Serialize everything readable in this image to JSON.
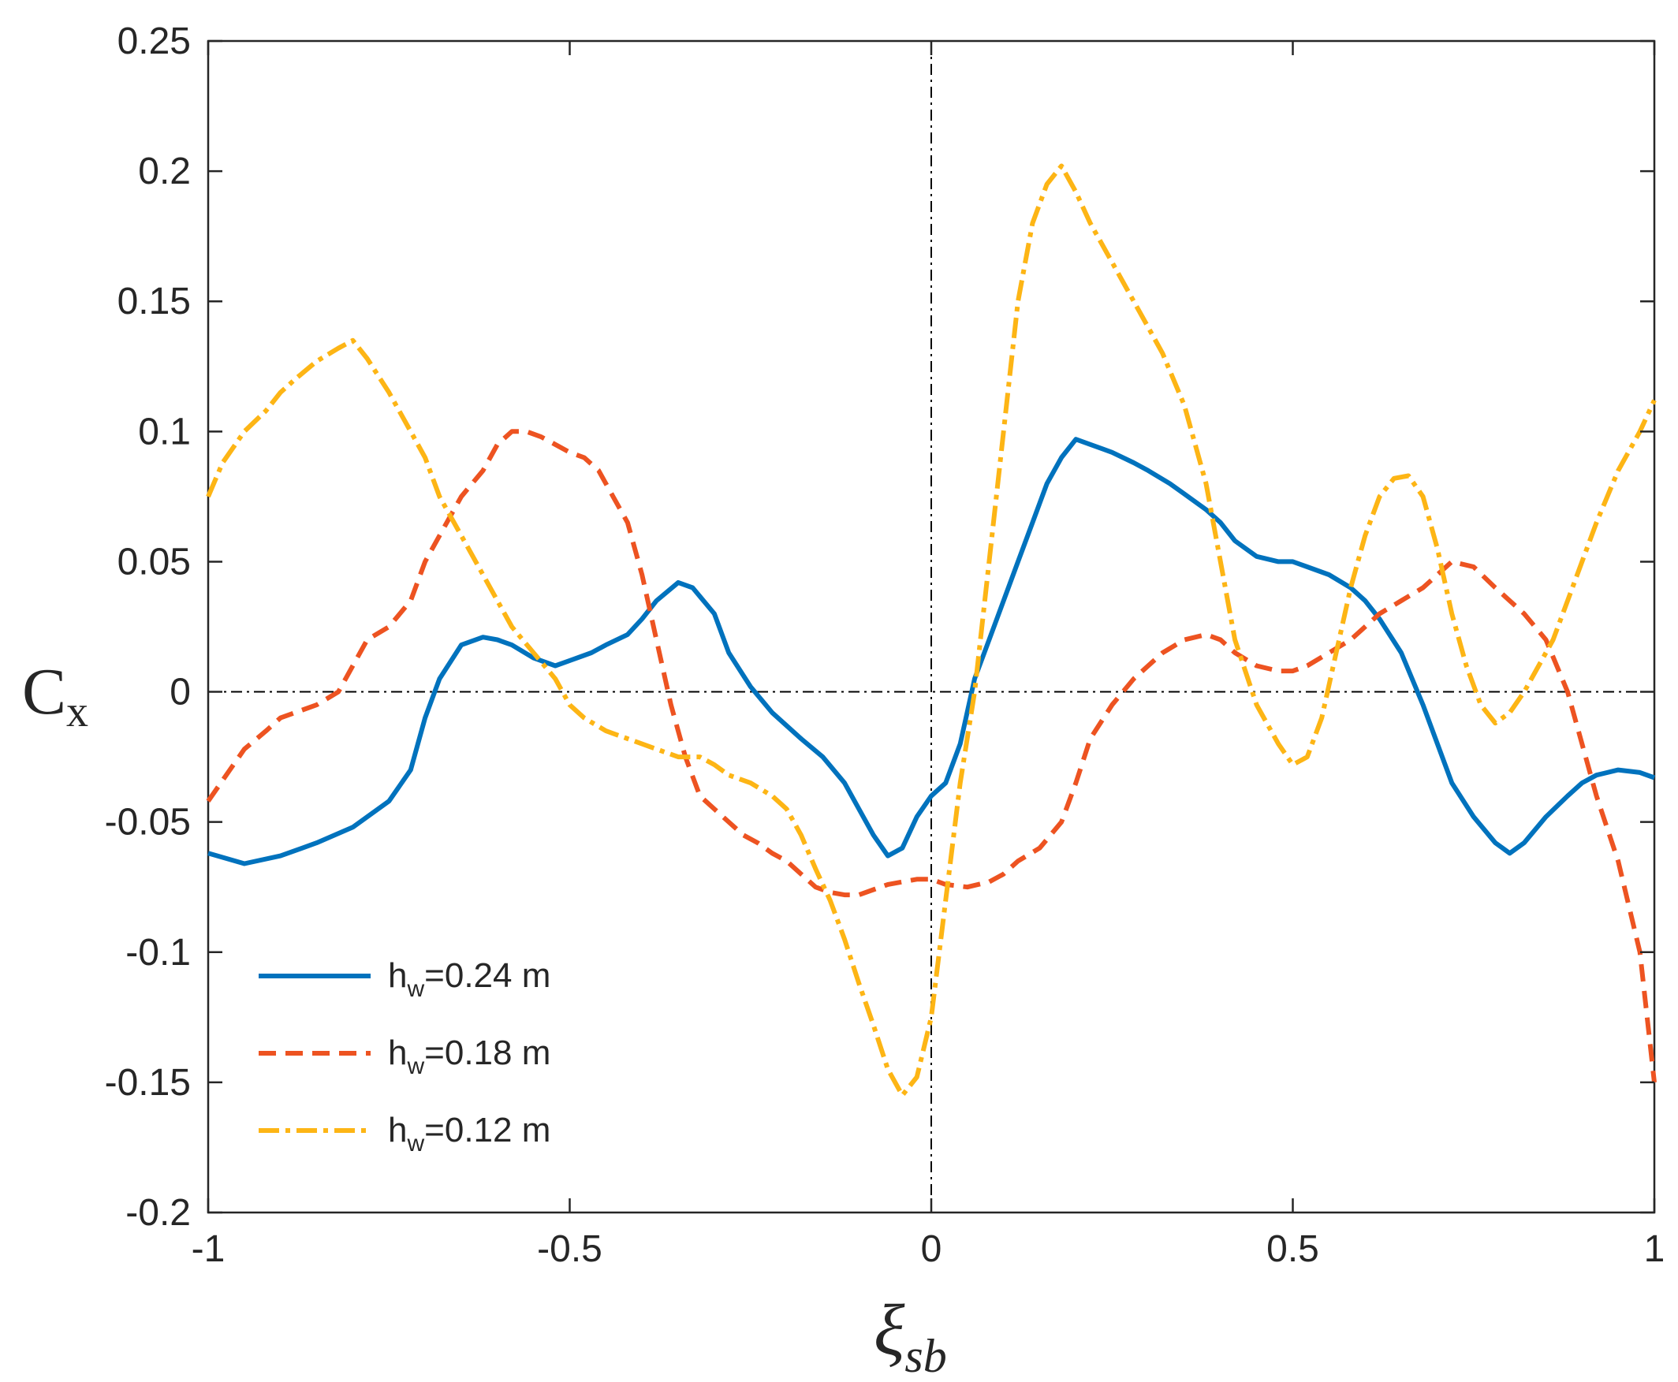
{
  "chart_data": {
    "type": "line",
    "title": "",
    "xlabel": "ξ",
    "xlabel_sub": "sb",
    "ylabel": "C",
    "ylabel_sub": "x",
    "xlim": [
      -1,
      1
    ],
    "ylim": [
      -0.2,
      0.25
    ],
    "xticks": [
      -1,
      -0.5,
      0,
      0.5,
      1
    ],
    "xtick_labels": [
      "-1",
      "-0.5",
      "0",
      "0.5",
      "1"
    ],
    "yticks": [
      -0.2,
      -0.15,
      -0.1,
      -0.05,
      0,
      0.05,
      0.1,
      0.15,
      0.2,
      0.25
    ],
    "ytick_labels": [
      "-0.2",
      "-0.15",
      "-0.1",
      "-0.05",
      "0",
      "0.05",
      "0.1",
      "0.15",
      "0.2",
      "0.25"
    ],
    "grid": false,
    "reference_lines": [
      {
        "orientation": "horizontal",
        "value": 0,
        "style": "dash-dot",
        "color": "#000000"
      },
      {
        "orientation": "vertical",
        "value": 0,
        "style": "dash-dot",
        "color": "#000000"
      }
    ],
    "legend_position": "bottom-left",
    "series": [
      {
        "name": "h_w=0.24 m",
        "legend_base": "h",
        "legend_sub": "w",
        "legend_rest": "=0.24 m",
        "color": "#0072BD",
        "style": "solid",
        "x": [
          -1.0,
          -0.95,
          -0.9,
          -0.85,
          -0.8,
          -0.75,
          -0.72,
          -0.7,
          -0.68,
          -0.65,
          -0.62,
          -0.6,
          -0.58,
          -0.55,
          -0.52,
          -0.5,
          -0.47,
          -0.45,
          -0.42,
          -0.4,
          -0.38,
          -0.35,
          -0.33,
          -0.3,
          -0.28,
          -0.25,
          -0.22,
          -0.2,
          -0.18,
          -0.15,
          -0.12,
          -0.1,
          -0.08,
          -0.06,
          -0.04,
          -0.02,
          0.0,
          0.02,
          0.04,
          0.06,
          0.08,
          0.1,
          0.12,
          0.14,
          0.16,
          0.18,
          0.2,
          0.22,
          0.25,
          0.28,
          0.3,
          0.33,
          0.35,
          0.38,
          0.4,
          0.42,
          0.45,
          0.48,
          0.5,
          0.52,
          0.55,
          0.58,
          0.6,
          0.62,
          0.65,
          0.68,
          0.7,
          0.72,
          0.75,
          0.78,
          0.8,
          0.82,
          0.85,
          0.88,
          0.9,
          0.92,
          0.95,
          0.98,
          1.0
        ],
        "values": [
          -0.062,
          -0.066,
          -0.063,
          -0.058,
          -0.052,
          -0.042,
          -0.03,
          -0.01,
          0.005,
          0.018,
          0.021,
          0.02,
          0.018,
          0.013,
          0.01,
          0.012,
          0.015,
          0.018,
          0.022,
          0.028,
          0.035,
          0.042,
          0.04,
          0.03,
          0.015,
          0.002,
          -0.008,
          -0.013,
          -0.018,
          -0.025,
          -0.035,
          -0.045,
          -0.055,
          -0.063,
          -0.06,
          -0.048,
          -0.04,
          -0.035,
          -0.02,
          0.005,
          0.02,
          0.035,
          0.05,
          0.065,
          0.08,
          0.09,
          0.097,
          0.095,
          0.092,
          0.088,
          0.085,
          0.08,
          0.076,
          0.07,
          0.065,
          0.058,
          0.052,
          0.05,
          0.05,
          0.048,
          0.045,
          0.04,
          0.035,
          0.028,
          0.015,
          -0.005,
          -0.02,
          -0.035,
          -0.048,
          -0.058,
          -0.062,
          -0.058,
          -0.048,
          -0.04,
          -0.035,
          -0.032,
          -0.03,
          -0.031,
          -0.033
        ]
      },
      {
        "name": "h_w=0.18 m",
        "legend_base": "h",
        "legend_sub": "w",
        "legend_rest": "=0.18 m",
        "color": "#ED5321",
        "style": "dashed",
        "x": [
          -1.0,
          -0.97,
          -0.95,
          -0.92,
          -0.9,
          -0.88,
          -0.85,
          -0.82,
          -0.8,
          -0.78,
          -0.75,
          -0.72,
          -0.7,
          -0.68,
          -0.65,
          -0.62,
          -0.6,
          -0.58,
          -0.56,
          -0.54,
          -0.52,
          -0.5,
          -0.48,
          -0.46,
          -0.44,
          -0.42,
          -0.4,
          -0.38,
          -0.36,
          -0.34,
          -0.32,
          -0.3,
          -0.28,
          -0.26,
          -0.24,
          -0.22,
          -0.2,
          -0.18,
          -0.16,
          -0.14,
          -0.12,
          -0.1,
          -0.08,
          -0.06,
          -0.04,
          -0.02,
          0.0,
          0.02,
          0.05,
          0.08,
          0.1,
          0.12,
          0.15,
          0.18,
          0.2,
          0.22,
          0.25,
          0.28,
          0.3,
          0.32,
          0.35,
          0.38,
          0.4,
          0.42,
          0.45,
          0.48,
          0.5,
          0.52,
          0.55,
          0.58,
          0.6,
          0.62,
          0.65,
          0.68,
          0.7,
          0.72,
          0.75,
          0.78,
          0.8,
          0.82,
          0.85,
          0.88,
          0.9,
          0.92,
          0.95,
          0.98,
          1.0
        ],
        "values": [
          -0.042,
          -0.03,
          -0.022,
          -0.015,
          -0.01,
          -0.008,
          -0.005,
          0.0,
          0.01,
          0.02,
          0.025,
          0.035,
          0.05,
          0.06,
          0.075,
          0.085,
          0.095,
          0.1,
          0.1,
          0.098,
          0.095,
          0.092,
          0.09,
          0.085,
          0.075,
          0.065,
          0.045,
          0.02,
          -0.005,
          -0.025,
          -0.04,
          -0.045,
          -0.05,
          -0.055,
          -0.058,
          -0.062,
          -0.065,
          -0.07,
          -0.075,
          -0.077,
          -0.078,
          -0.078,
          -0.076,
          -0.074,
          -0.073,
          -0.072,
          -0.072,
          -0.074,
          -0.075,
          -0.073,
          -0.07,
          -0.065,
          -0.06,
          -0.05,
          -0.035,
          -0.018,
          -0.005,
          0.005,
          0.01,
          0.015,
          0.02,
          0.022,
          0.02,
          0.015,
          0.01,
          0.008,
          0.008,
          0.01,
          0.015,
          0.02,
          0.025,
          0.03,
          0.035,
          0.04,
          0.045,
          0.05,
          0.048,
          0.04,
          0.035,
          0.03,
          0.02,
          0.0,
          -0.02,
          -0.04,
          -0.065,
          -0.1,
          -0.15
        ]
      },
      {
        "name": "h_w=0.12 m",
        "legend_base": "h",
        "legend_sub": "w",
        "legend_rest": "=0.12 m",
        "color": "#FDB515",
        "style": "dash-dot",
        "x": [
          -1.0,
          -0.98,
          -0.95,
          -0.92,
          -0.9,
          -0.88,
          -0.85,
          -0.82,
          -0.8,
          -0.78,
          -0.75,
          -0.72,
          -0.7,
          -0.68,
          -0.65,
          -0.62,
          -0.6,
          -0.58,
          -0.55,
          -0.52,
          -0.5,
          -0.48,
          -0.45,
          -0.42,
          -0.4,
          -0.38,
          -0.35,
          -0.32,
          -0.3,
          -0.28,
          -0.25,
          -0.22,
          -0.2,
          -0.18,
          -0.16,
          -0.14,
          -0.12,
          -0.1,
          -0.08,
          -0.06,
          -0.04,
          -0.02,
          0.0,
          0.02,
          0.04,
          0.06,
          0.08,
          0.1,
          0.12,
          0.14,
          0.16,
          0.18,
          0.2,
          0.22,
          0.25,
          0.28,
          0.3,
          0.32,
          0.35,
          0.38,
          0.4,
          0.42,
          0.45,
          0.48,
          0.5,
          0.52,
          0.54,
          0.56,
          0.58,
          0.6,
          0.62,
          0.64,
          0.66,
          0.68,
          0.7,
          0.72,
          0.74,
          0.76,
          0.78,
          0.8,
          0.82,
          0.84,
          0.86,
          0.88,
          0.9,
          0.92,
          0.95,
          0.98,
          1.0
        ],
        "values": [
          0.075,
          0.088,
          0.1,
          0.108,
          0.115,
          0.12,
          0.127,
          0.132,
          0.135,
          0.128,
          0.115,
          0.1,
          0.09,
          0.075,
          0.06,
          0.045,
          0.035,
          0.025,
          0.015,
          0.005,
          -0.005,
          -0.01,
          -0.015,
          -0.018,
          -0.02,
          -0.022,
          -0.025,
          -0.025,
          -0.028,
          -0.032,
          -0.035,
          -0.04,
          -0.045,
          -0.055,
          -0.068,
          -0.08,
          -0.095,
          -0.112,
          -0.128,
          -0.145,
          -0.155,
          -0.148,
          -0.125,
          -0.08,
          -0.035,
          0.0,
          0.05,
          0.1,
          0.15,
          0.18,
          0.195,
          0.202,
          0.192,
          0.18,
          0.165,
          0.15,
          0.14,
          0.13,
          0.11,
          0.08,
          0.05,
          0.02,
          -0.005,
          -0.02,
          -0.028,
          -0.025,
          -0.01,
          0.015,
          0.04,
          0.06,
          0.075,
          0.082,
          0.083,
          0.075,
          0.055,
          0.03,
          0.01,
          -0.005,
          -0.012,
          -0.008,
          0.0,
          0.01,
          0.02,
          0.035,
          0.05,
          0.065,
          0.085,
          0.1,
          0.112
        ]
      }
    ]
  }
}
